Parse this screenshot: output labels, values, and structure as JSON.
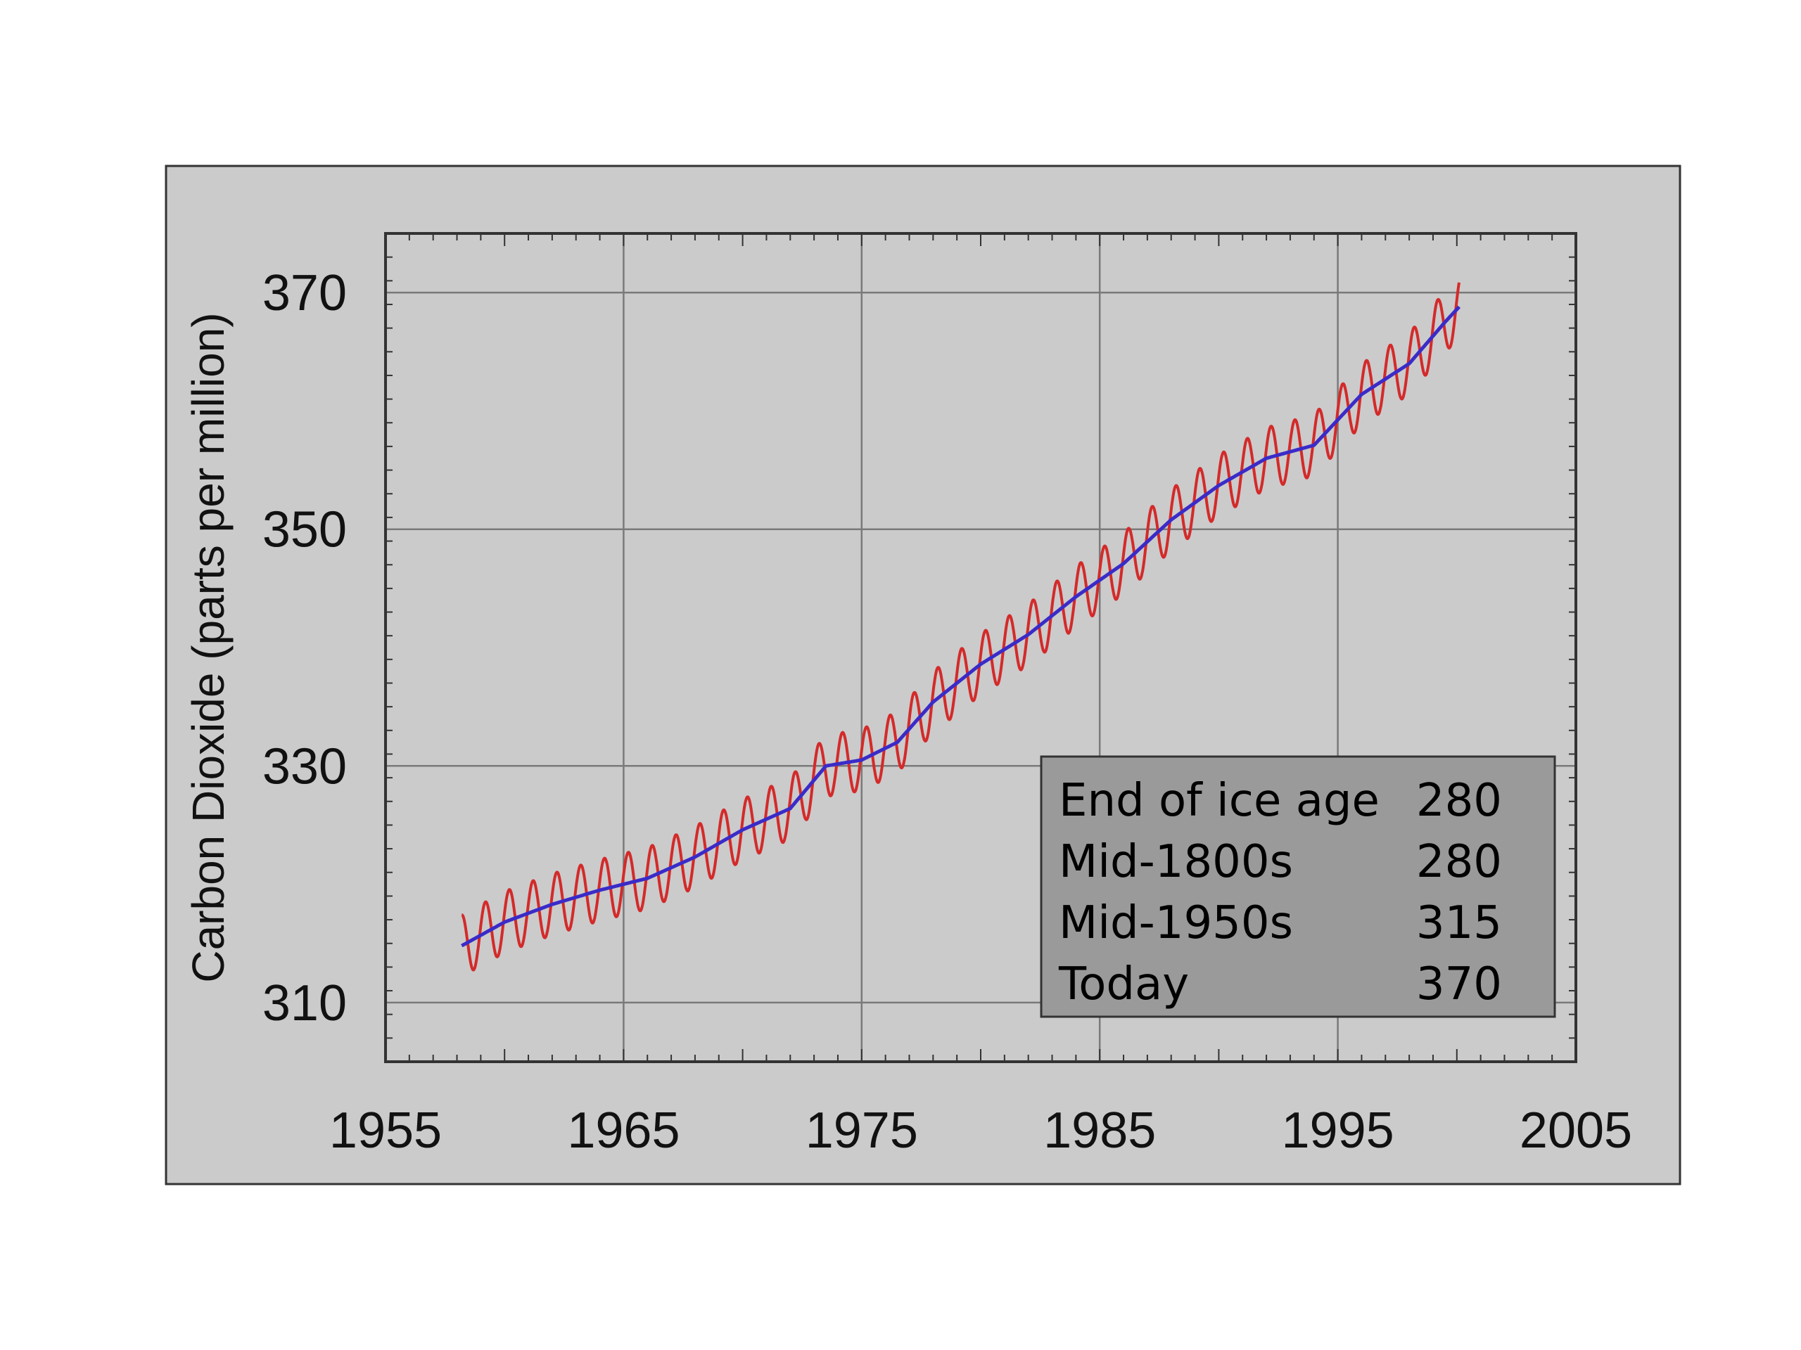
{
  "chart_data": {
    "type": "line",
    "title": "",
    "xlabel": "",
    "ylabel": "Carbon Dioxide (parts per million)",
    "xlim": [
      1955,
      2005
    ],
    "ylim": [
      305,
      375
    ],
    "x_ticks": [
      1955,
      1965,
      1975,
      1985,
      1995,
      2005
    ],
    "y_ticks": [
      310,
      330,
      350,
      370
    ],
    "grid": true,
    "colors": {
      "panel_background": "#cbcbcb",
      "plot_background": "#cbcbcb",
      "grid": "#7a7a7a",
      "monthly": "#d42a2a",
      "trend": "#3a2bc8",
      "inset_background": "#9a9a9a"
    },
    "series": [
      {
        "role": "monthly",
        "seasonal_amplitude": 2.6,
        "x": [
          1958.2,
          1960,
          1962,
          1964,
          1966,
          1968,
          1970,
          1972,
          1973.5,
          1975,
          1976.5,
          1978,
          1980,
          1982,
          1984,
          1986,
          1988,
          1990,
          1992,
          1994,
          1996,
          1998,
          1999.5,
          2000.1
        ],
        "values": [
          314.8,
          316.8,
          318.3,
          319.5,
          320.5,
          322.3,
          324.6,
          326.4,
          330.0,
          330.5,
          332.0,
          335.4,
          338.6,
          341.1,
          344.3,
          347.1,
          350.8,
          353.7,
          356.0,
          357.1,
          361.4,
          364.0,
          367.5,
          368.8
        ]
      },
      {
        "role": "trend",
        "x": [
          1958.2,
          1960,
          1962,
          1964,
          1966,
          1968,
          1970,
          1972,
          1973.5,
          1975,
          1976.5,
          1978,
          1980,
          1982,
          1984,
          1986,
          1988,
          1990,
          1992,
          1994,
          1996,
          1998,
          1999.5,
          2000.1
        ],
        "values": [
          314.8,
          316.8,
          318.3,
          319.5,
          320.5,
          322.3,
          324.6,
          326.4,
          330.0,
          330.5,
          332.0,
          335.4,
          338.6,
          341.1,
          344.3,
          347.1,
          350.8,
          353.7,
          356.0,
          357.1,
          361.4,
          364.0,
          367.5,
          368.8
        ]
      }
    ],
    "inset_table": [
      {
        "label": "End of ice age",
        "value": "280"
      },
      {
        "label": "Mid-1800s",
        "value": "280"
      },
      {
        "label": "Mid-1950s",
        "value": "315"
      },
      {
        "label": "Today",
        "value": "370"
      }
    ]
  }
}
